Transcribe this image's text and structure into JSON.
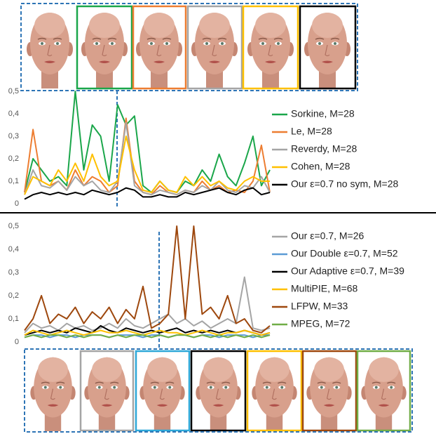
{
  "chart_data": [
    {
      "type": "line",
      "ylim": [
        0,
        0.5
      ],
      "yticks": [
        0,
        {
          "value": 0.1,
          "label": "0,1"
        },
        {
          "value": 0.2,
          "label": "0,2"
        },
        {
          "value": 0.3,
          "label": "0,3"
        },
        {
          "value": 0.4,
          "label": "0,4"
        },
        {
          "value": 0.5,
          "label": "0,5"
        }
      ],
      "grid": false,
      "series": [
        {
          "name": "Sorkine, M=28",
          "color": "#1aa64a",
          "values": [
            0.05,
            0.2,
            0.15,
            0.1,
            0.12,
            0.08,
            0.5,
            0.15,
            0.35,
            0.3,
            0.1,
            0.44,
            0.35,
            0.39,
            0.08,
            0.05,
            0.1,
            0.06,
            0.05,
            0.1,
            0.08,
            0.15,
            0.1,
            0.22,
            0.12,
            0.08,
            0.18,
            0.3,
            0.08,
            0.15
          ]
        },
        {
          "name": "Le, M=28",
          "color": "#ed7d31",
          "values": [
            0.05,
            0.33,
            0.1,
            0.08,
            0.1,
            0.06,
            0.15,
            0.08,
            0.12,
            0.1,
            0.05,
            0.08,
            0.38,
            0.1,
            0.05,
            0.04,
            0.08,
            0.05,
            0.04,
            0.06,
            0.05,
            0.1,
            0.06,
            0.08,
            0.05,
            0.06,
            0.05,
            0.1,
            0.26,
            0.05
          ]
        },
        {
          "name": "Reverdy, M=28",
          "color": "#a5a5a5",
          "values": [
            0.04,
            0.15,
            0.08,
            0.07,
            0.1,
            0.06,
            0.12,
            0.08,
            0.1,
            0.06,
            0.05,
            0.1,
            0.36,
            0.08,
            0.05,
            0.04,
            0.06,
            0.05,
            0.04,
            0.06,
            0.05,
            0.08,
            0.06,
            0.1,
            0.06,
            0.05,
            0.08,
            0.07,
            0.12,
            0.05
          ]
        },
        {
          "name": "Cohen, M=28",
          "color": "#ffc000",
          "values": [
            0.04,
            0.12,
            0.1,
            0.08,
            0.15,
            0.1,
            0.18,
            0.1,
            0.22,
            0.12,
            0.08,
            0.1,
            0.3,
            0.15,
            0.06,
            0.05,
            0.1,
            0.06,
            0.05,
            0.12,
            0.08,
            0.12,
            0.08,
            0.1,
            0.07,
            0.06,
            0.1,
            0.12,
            0.1,
            0.1
          ]
        },
        {
          "name": "Our ε=0.7 no sym, M=28",
          "color": "#000000",
          "values": [
            0.02,
            0.04,
            0.05,
            0.04,
            0.05,
            0.04,
            0.05,
            0.04,
            0.06,
            0.05,
            0.04,
            0.05,
            0.07,
            0.06,
            0.03,
            0.03,
            0.04,
            0.03,
            0.03,
            0.05,
            0.04,
            0.05,
            0.06,
            0.07,
            0.05,
            0.04,
            0.06,
            0.07,
            0.04,
            0.05
          ]
        }
      ]
    },
    {
      "type": "line",
      "ylim": [
        0,
        0.5
      ],
      "yticks": [
        0,
        {
          "value": 0.1,
          "label": "0,1"
        },
        {
          "value": 0.2,
          "label": "0,2"
        },
        {
          "value": 0.3,
          "label": "0,3"
        },
        {
          "value": 0.4,
          "label": "0,4"
        },
        {
          "value": 0.5,
          "label": "0,5"
        }
      ],
      "grid": false,
      "series": [
        {
          "name": "Our ε=0.7, M=26",
          "color": "#a5a5a5",
          "values": [
            0.04,
            0.08,
            0.06,
            0.07,
            0.05,
            0.08,
            0.06,
            0.07,
            0.05,
            0.06,
            0.08,
            0.06,
            0.1,
            0.07,
            0.06,
            0.08,
            0.1,
            0.12,
            0.08,
            0.1,
            0.07,
            0.09,
            0.06,
            0.08,
            0.1,
            0.08,
            0.28,
            0.06,
            0.05,
            0.06
          ]
        },
        {
          "name": "Our Double ε=0.7, M=52",
          "color": "#5b9bd5",
          "values": [
            0.02,
            0.03,
            0.03,
            0.02,
            0.03,
            0.03,
            0.02,
            0.03,
            0.03,
            0.03,
            0.02,
            0.03,
            0.03,
            0.03,
            0.02,
            0.03,
            0.03,
            0.02,
            0.03,
            0.03,
            0.02,
            0.03,
            0.03,
            0.02,
            0.03,
            0.03,
            0.03,
            0.02,
            0.03,
            0.03
          ]
        },
        {
          "name": "Our Adaptive ε=0.7, M=39",
          "color": "#000000",
          "values": [
            0.03,
            0.04,
            0.05,
            0.04,
            0.05,
            0.04,
            0.06,
            0.05,
            0.04,
            0.07,
            0.05,
            0.04,
            0.06,
            0.05,
            0.04,
            0.05,
            0.04,
            0.05,
            0.06,
            0.04,
            0.05,
            0.04,
            0.05,
            0.04,
            0.05,
            0.04,
            0.05,
            0.04,
            0.03,
            0.04
          ]
        },
        {
          "name": "MultiPIE, M=68",
          "color": "#ffc000",
          "values": [
            0.03,
            0.05,
            0.04,
            0.03,
            0.04,
            0.05,
            0.04,
            0.03,
            0.04,
            0.05,
            0.04,
            0.04,
            0.05,
            0.04,
            0.03,
            0.04,
            0.05,
            0.04,
            0.04,
            0.03,
            0.04,
            0.05,
            0.04,
            0.03,
            0.04,
            0.04,
            0.05,
            0.04,
            0.03,
            0.04
          ]
        },
        {
          "name": "LFPW, M=33",
          "color": "#9e480e",
          "values": [
            0.05,
            0.1,
            0.2,
            0.08,
            0.12,
            0.1,
            0.15,
            0.08,
            0.13,
            0.1,
            0.15,
            0.08,
            0.14,
            0.1,
            0.24,
            0.06,
            0.08,
            0.12,
            0.5,
            0.1,
            0.5,
            0.12,
            0.15,
            0.1,
            0.2,
            0.08,
            0.1,
            0.05,
            0.04,
            0.07
          ]
        },
        {
          "name": "MPEG, M=72",
          "color": "#70ad47",
          "values": [
            0.02,
            0.03,
            0.02,
            0.03,
            0.03,
            0.02,
            0.03,
            0.02,
            0.03,
            0.03,
            0.02,
            0.03,
            0.02,
            0.03,
            0.03,
            0.02,
            0.03,
            0.02,
            0.03,
            0.03,
            0.02,
            0.03,
            0.02,
            0.03,
            0.02,
            0.03,
            0.02,
            0.03,
            0.02,
            0.03
          ]
        }
      ]
    }
  ]
}
